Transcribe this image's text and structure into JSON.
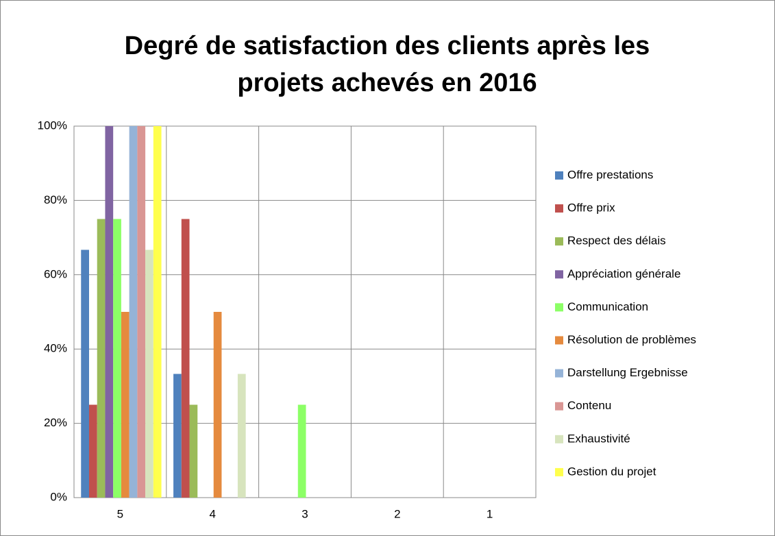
{
  "chart_data": {
    "type": "bar",
    "title": "Degré de satisfaction des clients après les projets achevés en 2016",
    "categories": [
      "5",
      "4",
      "3",
      "2",
      "1"
    ],
    "series": [
      {
        "name": "Offre prestations",
        "color": "#4f81bd",
        "values": [
          66.7,
          33.3,
          0,
          0,
          0
        ]
      },
      {
        "name": "Offre prix",
        "color": "#c0504d",
        "values": [
          25,
          75,
          0,
          0,
          0
        ]
      },
      {
        "name": "Respect des délais",
        "color": "#9bbb59",
        "values": [
          75,
          25,
          0,
          0,
          0
        ]
      },
      {
        "name": "Appréciation générale",
        "color": "#8064a2",
        "values": [
          100,
          0,
          0,
          0,
          0
        ]
      },
      {
        "name": "Communication",
        "color": "#8cff66",
        "values": [
          75,
          0,
          25,
          0,
          0
        ]
      },
      {
        "name": "Résolution de problèmes",
        "color": "#e58a3e",
        "values": [
          50,
          50,
          0,
          0,
          0
        ]
      },
      {
        "name": "Darstellung Ergebnisse",
        "color": "#95b3d7",
        "values": [
          100,
          0,
          0,
          0,
          0
        ]
      },
      {
        "name": "Contenu",
        "color": "#d99694",
        "values": [
          100,
          0,
          0,
          0,
          0
        ]
      },
      {
        "name": "Exhaustivité",
        "color": "#d7e4bd",
        "values": [
          66.7,
          33.3,
          0,
          0,
          0
        ]
      },
      {
        "name": "Gestion du projet",
        "color": "#ffff4d",
        "values": [
          100,
          0,
          0,
          0,
          0
        ]
      }
    ],
    "ylim": [
      0,
      100
    ],
    "yticks": [
      {
        "value": 0,
        "label": "0%"
      },
      {
        "value": 20,
        "label": "20%"
      },
      {
        "value": 40,
        "label": "40%"
      },
      {
        "value": 60,
        "label": "60%"
      },
      {
        "value": 80,
        "label": "80%"
      },
      {
        "value": 100,
        "label": "100%"
      }
    ],
    "grid": true,
    "legend": "right"
  }
}
